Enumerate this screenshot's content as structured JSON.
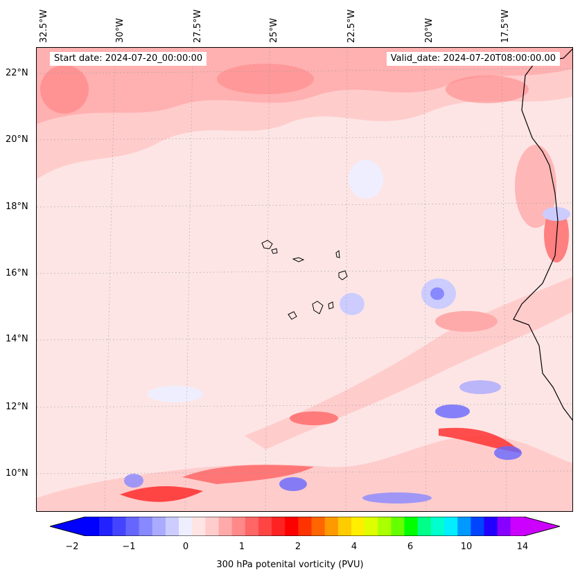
{
  "header": {
    "start_date": "Start date: 2024-07-20_00:00:00",
    "valid_date": "Valid_date: 2024-07-20T08:00:00.00"
  },
  "axes": {
    "lon_labels": [
      "32.5°W",
      "30°W",
      "27.5°W",
      "25°W",
      "22.5°W",
      "20°W",
      "17.5°W"
    ],
    "lat_labels": [
      "22°N",
      "20°N",
      "18°N",
      "16°N",
      "14°N",
      "12°N",
      "10°N"
    ]
  },
  "colorbar": {
    "title": "300 hPa potenital vorticity (PVU)",
    "tick_labels": [
      "−2",
      "−1",
      "0",
      "1",
      "2",
      "4",
      "6",
      "10",
      "14"
    ],
    "colors": [
      "#0000ff",
      "#2222ff",
      "#4444ff",
      "#6666ff",
      "#8888ff",
      "#aaaaff",
      "#ccccff",
      "#eeeeff",
      "#ffe4e4",
      "#ffcccc",
      "#ffaaaa",
      "#ff8888",
      "#ff6666",
      "#ff4444",
      "#ff2222",
      "#ff0000",
      "#ff3300",
      "#ff6600",
      "#ff9900",
      "#ffcc00",
      "#ffee00",
      "#ddff00",
      "#aaff00",
      "#66ff00",
      "#00ff00",
      "#00ff88",
      "#00ffcc",
      "#00eeff",
      "#0099ff",
      "#0044ff",
      "#2200ff",
      "#8800ff",
      "#cc00ff"
    ],
    "under_color": "#0000ff",
    "over_color": "#cc00ff"
  }
}
